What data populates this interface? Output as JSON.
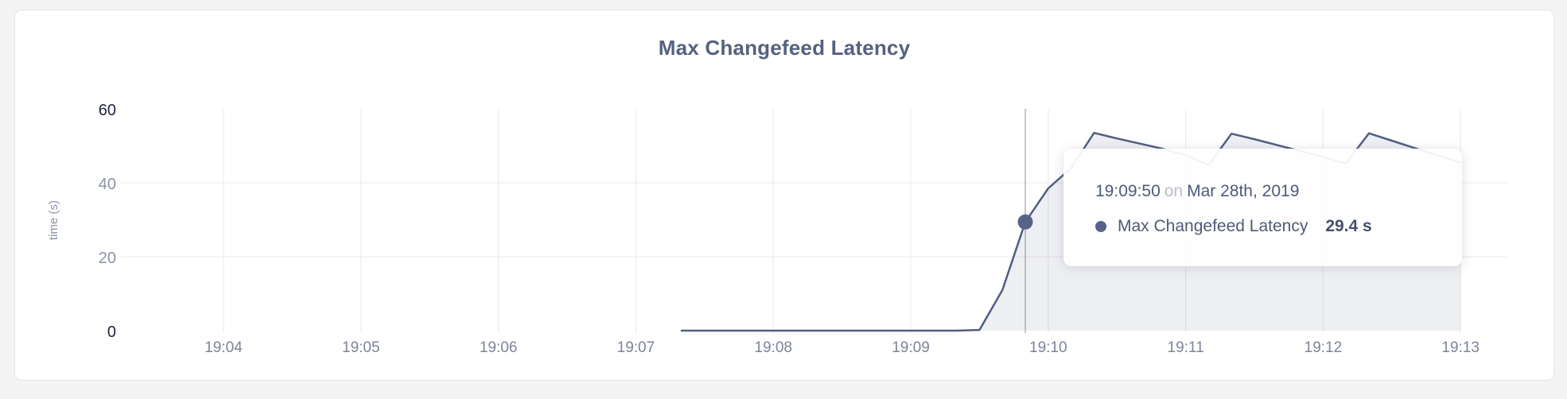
{
  "card": {
    "title": "Max Changefeed Latency"
  },
  "tooltip": {
    "time": "19:09:50",
    "separator": "on",
    "date": "Mar 28th, 2019",
    "series": "Max Changefeed Latency",
    "value": "29.4 s"
  },
  "colors": {
    "page_bg": "#f4f4f5",
    "card_bg": "#ffffff",
    "card_border": "#e4e4e6",
    "title_text": "#55617f",
    "grid_line": "#ededf0",
    "crosshair": "#b6b6bd",
    "series_line": "#525e82",
    "series_fill": "rgba(86,97,133,0.10)",
    "hover_dot": "#58638a",
    "tick_strong": "#1d2342",
    "tick_muted": "#8c93a6",
    "x_tick": "#7d8498",
    "axis_title": "#8c93a6",
    "tooltip_bg": "rgba(255,255,255,0.93)",
    "tooltip_text": "#4f5a78",
    "tooltip_muted": "#b9bdc6",
    "tooltip_value": "#454f6d"
  },
  "chart_data": {
    "type": "area",
    "title": "Max Changefeed Latency",
    "xlabel": "",
    "ylabel": "time (s)",
    "ylim": [
      0,
      60
    ],
    "grid": "horizontal+vertical",
    "legend_position": "none",
    "x_origin": "19:04:00",
    "x_ticks": [
      "19:04",
      "19:05",
      "19:06",
      "19:07",
      "19:08",
      "19:09",
      "19:10",
      "19:11",
      "19:12",
      "19:13"
    ],
    "y_ticks": [
      {
        "value": 0,
        "emphasis": "strong",
        "gridline": false
      },
      {
        "value": 20,
        "emphasis": "muted",
        "gridline": true
      },
      {
        "value": 40,
        "emphasis": "muted",
        "gridline": true
      },
      {
        "value": 60,
        "emphasis": "strong",
        "gridline": false
      }
    ],
    "hover": {
      "time": "19:09:50",
      "date": "Mar 28th, 2019",
      "value": 29.4,
      "unit": "s"
    },
    "series": [
      {
        "name": "Max Changefeed Latency",
        "unit": "s",
        "points": [
          [
            "19:07:20",
            0
          ],
          [
            "19:07:30",
            0
          ],
          [
            "19:07:40",
            0
          ],
          [
            "19:07:50",
            0
          ],
          [
            "19:08:00",
            0
          ],
          [
            "19:08:10",
            0
          ],
          [
            "19:08:20",
            0
          ],
          [
            "19:08:30",
            0
          ],
          [
            "19:08:40",
            0
          ],
          [
            "19:08:50",
            0
          ],
          [
            "19:09:00",
            0
          ],
          [
            "19:09:10",
            0
          ],
          [
            "19:09:20",
            0
          ],
          [
            "19:09:30",
            0.2
          ],
          [
            "19:09:40",
            11
          ],
          [
            "19:09:50",
            29.4
          ],
          [
            "19:10:00",
            38.5
          ],
          [
            "19:10:10",
            44
          ],
          [
            "19:10:20",
            53.5
          ],
          [
            "19:10:30",
            52
          ],
          [
            "19:10:40",
            50.6
          ],
          [
            "19:10:50",
            49.2
          ],
          [
            "19:11:00",
            47.5
          ],
          [
            "19:11:10",
            44.8
          ],
          [
            "19:11:20",
            53.3
          ],
          [
            "19:11:30",
            51.8
          ],
          [
            "19:11:40",
            50.2
          ],
          [
            "19:11:50",
            48.6
          ],
          [
            "19:12:00",
            47.0
          ],
          [
            "19:12:10",
            45.3
          ],
          [
            "19:12:20",
            53.4
          ],
          [
            "19:12:30",
            51.4
          ],
          [
            "19:12:40",
            49.4
          ],
          [
            "19:12:50",
            47.4
          ],
          [
            "19:13:00",
            45.5
          ]
        ]
      }
    ]
  }
}
